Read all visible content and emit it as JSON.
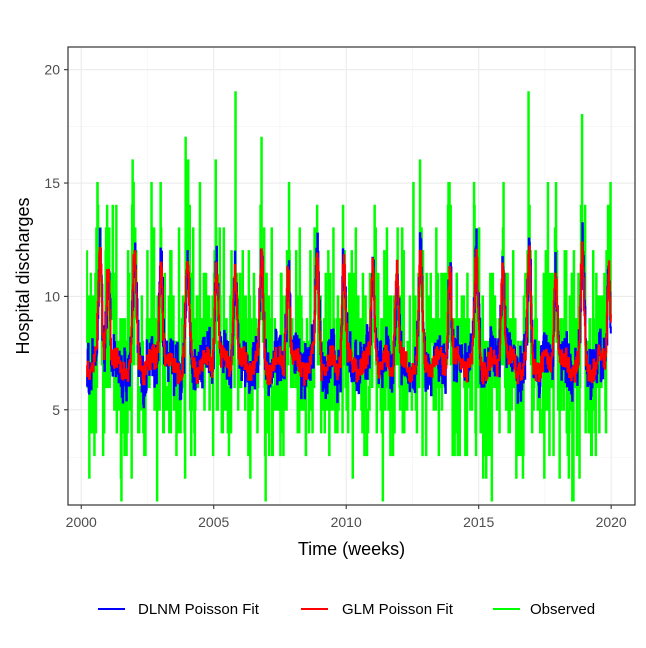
{
  "chart_data": {
    "type": "line",
    "xlabel": "Time (weeks)",
    "ylabel": "Hospital discharges",
    "xlim": [
      1999.5,
      2020.9
    ],
    "ylim": [
      0.8,
      21.0
    ],
    "x_ticks": [
      2000,
      2005,
      2010,
      2015,
      2020
    ],
    "x_tick_labels": [
      "2000",
      "2005",
      "2010",
      "2015",
      "2020"
    ],
    "y_ticks": [
      5,
      10,
      15,
      20
    ],
    "y_tick_labels": [
      "5",
      "10",
      "15",
      "20"
    ],
    "grid": true,
    "legend_position": "bottom",
    "legend": [
      {
        "name": "DLNM Poisson Fit",
        "color": "#0000ff"
      },
      {
        "name": "GLM Poisson Fit",
        "color": "#ff0000"
      },
      {
        "name": "Observed",
        "color": "#00ff00"
      }
    ],
    "x_start": 2000.2,
    "x_end": 2020.0,
    "peak_positions": [
      2000.7,
      2001.0,
      2002.0,
      2003.0,
      2004.0,
      2005.1,
      2005.8,
      2006.8,
      2007.8,
      2008.9,
      2009.9,
      2011.0,
      2011.9,
      2012.8,
      2013.9,
      2014.9,
      2015.9,
      2016.9,
      2017.9,
      2018.9,
      2019.9
    ],
    "series": [
      {
        "name": "Observed",
        "color": "#00ff00",
        "summary": {
          "min": 1,
          "max": 20,
          "typical_low": 3,
          "typical_high": 14
        }
      },
      {
        "name": "GLM Poisson Fit",
        "color": "#ff0000",
        "summary": {
          "min": 5.8,
          "max": 13,
          "baseline": 7
        }
      },
      {
        "name": "DLNM Poisson Fit",
        "color": "#0000ff",
        "summary": {
          "min": 3.8,
          "max": 16,
          "baseline": 7
        }
      }
    ]
  }
}
